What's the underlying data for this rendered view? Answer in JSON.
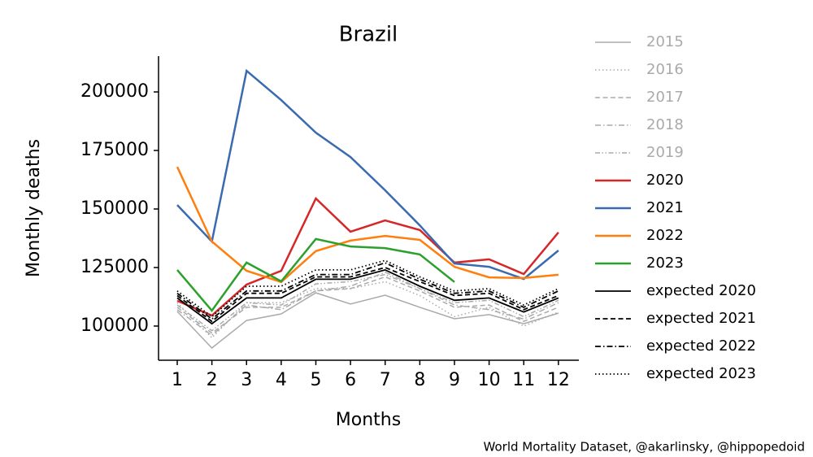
{
  "chart_data": {
    "type": "line",
    "title": "Brazil",
    "xlabel": "Months",
    "ylabel": "Monthly deaths",
    "source": "World Mortality Dataset, @akarlinsky, @hippopedoid",
    "x": [
      1,
      2,
      3,
      4,
      5,
      6,
      7,
      8,
      9,
      10,
      11,
      12
    ],
    "xlim": [
      0.46,
      12.59
    ],
    "xticks": [
      1,
      2,
      3,
      4,
      5,
      6,
      7,
      8,
      9,
      10,
      11,
      12
    ],
    "ylim": [
      85400,
      215300
    ],
    "yticks": [
      100000,
      125000,
      150000,
      175000,
      200000
    ],
    "grid": false,
    "legend": "outside right",
    "series": [
      {
        "name": "2015",
        "color": "#aaaaaa",
        "dash": "solid",
        "values": [
          106250,
          90600,
          102400,
          105200,
          114200,
          109400,
          113200,
          108000,
          103100,
          104900,
          101000,
          105500
        ]
      },
      {
        "name": "2016",
        "color": "#aaaaaa",
        "dash": "dotted",
        "values": [
          110000,
          95000,
          110000,
          110000,
          116000,
          116000,
          119000,
          113000,
          104000,
          108000,
          100000,
          106000
        ]
      },
      {
        "name": "2017",
        "color": "#aaaaaa",
        "dash": "dashed",
        "values": [
          108000,
          97000,
          108000,
          108000,
          115000,
          116000,
          121000,
          115000,
          108000,
          109000,
          102000,
          108000
        ]
      },
      {
        "name": "2018",
        "color": "#aaaaaa",
        "dash": "dashdot",
        "values": [
          107000,
          96000,
          109000,
          107000,
          115000,
          117000,
          123000,
          116000,
          109000,
          107000,
          103000,
          110000
        ]
      },
      {
        "name": "2019",
        "color": "#aaaaaa",
        "dash": "dashdotdot",
        "values": [
          109000,
          98000,
          110000,
          109000,
          118000,
          119000,
          122000,
          116000,
          110000,
          111000,
          104000,
          111000
        ]
      },
      {
        "name": "2020",
        "color": "#d62728",
        "dash": "solid",
        "values": [
          110800,
          104500,
          117700,
          123600,
          154500,
          140300,
          145100,
          141000,
          127100,
          128500,
          122200,
          140000
        ]
      },
      {
        "name": "2021",
        "color": "#3a6ab0",
        "dash": "solid",
        "values": [
          151700,
          136100,
          209000,
          196500,
          182600,
          172200,
          158000,
          143000,
          126700,
          125300,
          120100,
          132300
        ]
      },
      {
        "name": "2022",
        "color": "#ff7f0e",
        "dash": "solid",
        "values": [
          168000,
          136100,
          123600,
          118800,
          132000,
          136500,
          138500,
          136800,
          125300,
          120800,
          120500,
          121900
        ]
      },
      {
        "name": "2023",
        "color": "#2ca02c",
        "dash": "solid",
        "values": [
          124000,
          106600,
          127100,
          119100,
          137200,
          134000,
          133300,
          130600,
          118800,
          null,
          null,
          null
        ]
      },
      {
        "name": "expected 2020",
        "color": "#000000",
        "dash": "solid",
        "values": [
          112000,
          101000,
          112000,
          112000,
          120000,
          120000,
          124000,
          117000,
          111000,
          112000,
          106000,
          112000
        ]
      },
      {
        "name": "expected 2021",
        "color": "#000000",
        "dash": "dashed",
        "values": [
          113000,
          102000,
          114000,
          114000,
          121000,
          121000,
          125000,
          119000,
          113000,
          114000,
          107000,
          113000
        ]
      },
      {
        "name": "expected 2022",
        "color": "#000000",
        "dash": "dashdot",
        "values": [
          114000,
          103000,
          115000,
          115000,
          122000,
          122000,
          127000,
          120000,
          114000,
          115000,
          108000,
          115000
        ]
      },
      {
        "name": "expected 2023",
        "color": "#000000",
        "dash": "dotted",
        "values": [
          115000,
          104000,
          117000,
          117000,
          124000,
          124000,
          128000,
          121000,
          115000,
          116000,
          109000,
          116000
        ]
      }
    ]
  }
}
